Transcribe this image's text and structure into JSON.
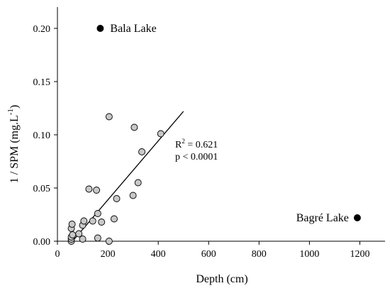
{
  "chart_data": {
    "type": "scatter",
    "title": "",
    "xlabel": "Depth (cm)",
    "ylabel": {
      "prefix": "1 / SPM (mg.L",
      "superscript": "-1",
      "suffix": ")"
    },
    "xlim": [
      0,
      1300
    ],
    "ylim": [
      0,
      0.22
    ],
    "x_ticks": [
      0,
      200,
      400,
      600,
      800,
      1000,
      1200
    ],
    "y_ticks": [
      0.0,
      0.05,
      0.1,
      0.15,
      0.2
    ],
    "y_tick_labels": [
      "0.00",
      "0.05",
      "0.10",
      "0.15",
      "0.20"
    ],
    "grid": false,
    "series": [
      {
        "marker_color": "#c8c8c8",
        "points": [
          {
            "x": 55,
            "y": 0.0
          },
          {
            "x": 55,
            "y": 0.002
          },
          {
            "x": 55,
            "y": 0.004
          },
          {
            "x": 60,
            "y": 0.006
          },
          {
            "x": 55,
            "y": 0.012
          },
          {
            "x": 58,
            "y": 0.016
          },
          {
            "x": 85,
            "y": 0.007
          },
          {
            "x": 100,
            "y": 0.002
          },
          {
            "x": 100,
            "y": 0.015
          },
          {
            "x": 105,
            "y": 0.019
          },
          {
            "x": 125,
            "y": 0.049
          },
          {
            "x": 140,
            "y": 0.019
          },
          {
            "x": 155,
            "y": 0.048
          },
          {
            "x": 160,
            "y": 0.026
          },
          {
            "x": 160,
            "y": 0.003
          },
          {
            "x": 175,
            "y": 0.018
          },
          {
            "x": 205,
            "y": 0.0
          },
          {
            "x": 205,
            "y": 0.117
          },
          {
            "x": 225,
            "y": 0.021
          },
          {
            "x": 235,
            "y": 0.04
          },
          {
            "x": 300,
            "y": 0.043
          },
          {
            "x": 305,
            "y": 0.107
          },
          {
            "x": 320,
            "y": 0.055
          },
          {
            "x": 335,
            "y": 0.084
          },
          {
            "x": 410,
            "y": 0.101
          }
        ]
      },
      {
        "marker_color": "#000000",
        "points": [
          {
            "x": 170,
            "y": 0.2,
            "label": "Bala Lake"
          },
          {
            "x": 1190,
            "y": 0.022,
            "label": "Bagré Lake"
          }
        ]
      }
    ],
    "regression_line": {
      "x": [
        60,
        500
      ],
      "y": [
        0.0,
        0.122
      ]
    },
    "annotation": {
      "r2_prefix": "R",
      "r2_superscript": "2",
      "r2_value": " = 0.621",
      "p_text": "p < 0.0001"
    }
  }
}
